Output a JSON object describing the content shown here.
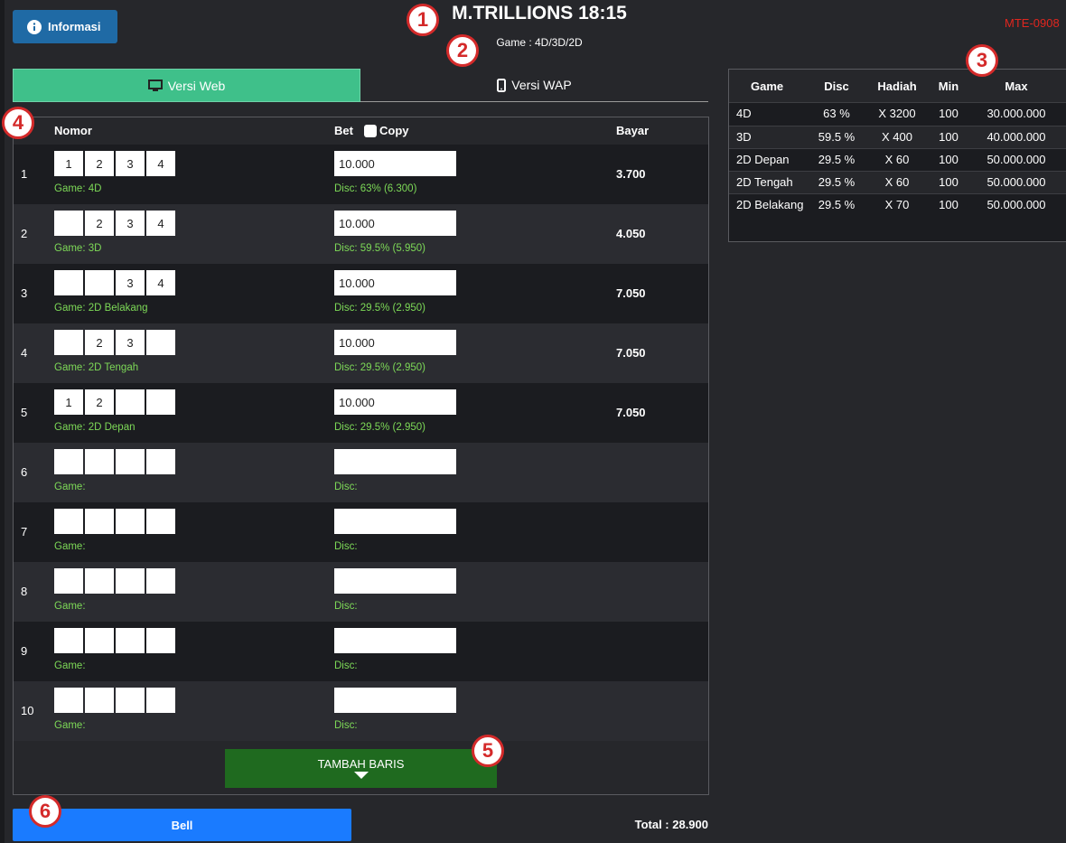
{
  "header": {
    "info_button": "Informasi",
    "title": "M.TRILLIONS 18:15",
    "subtitle": "Game : 4D/3D/2D",
    "code": "MTE-0908"
  },
  "tabs": [
    "Versi Web",
    "Versi WAP"
  ],
  "form": {
    "columns": {
      "nomor": "Nomor",
      "bet": "Bet",
      "copy": "Copy",
      "bayar": "Bayar"
    },
    "rows": [
      {
        "no": "1",
        "digits": [
          "1",
          "2",
          "3",
          "4"
        ],
        "game": "Game: 4D",
        "bet": "10.000",
        "disc": "Disc: 63% (6.300)",
        "bayar": "3.700"
      },
      {
        "no": "2",
        "digits": [
          null,
          "2",
          "3",
          "4"
        ],
        "game": "Game: 3D",
        "bet": "10.000",
        "disc": "Disc: 59.5% (5.950)",
        "bayar": "4.050"
      },
      {
        "no": "3",
        "digits": [
          null,
          null,
          "3",
          "4"
        ],
        "game": "Game: 2D Belakang",
        "bet": "10.000",
        "disc": "Disc: 29.5% (2.950)",
        "bayar": "7.050"
      },
      {
        "no": "4",
        "digits": [
          null,
          "2",
          "3",
          null
        ],
        "game": "Game: 2D Tengah",
        "bet": "10.000",
        "disc": "Disc: 29.5% (2.950)",
        "bayar": "7.050"
      },
      {
        "no": "5",
        "digits": [
          "1",
          "2",
          null,
          null
        ],
        "game": "Game: 2D Depan",
        "bet": "10.000",
        "disc": "Disc: 29.5% (2.950)",
        "bayar": "7.050"
      },
      {
        "no": "6",
        "digits": [
          null,
          null,
          null,
          null
        ],
        "game": "Game:",
        "bet": null,
        "disc": "Disc:",
        "bayar": null
      },
      {
        "no": "7",
        "digits": [
          null,
          null,
          null,
          null
        ],
        "game": "Game:",
        "bet": null,
        "disc": "Disc:",
        "bayar": null
      },
      {
        "no": "8",
        "digits": [
          null,
          null,
          null,
          null
        ],
        "game": "Game:",
        "bet": null,
        "disc": "Disc:",
        "bayar": null
      },
      {
        "no": "9",
        "digits": [
          null,
          null,
          null,
          null
        ],
        "game": "Game:",
        "bet": null,
        "disc": "Disc:",
        "bayar": null
      },
      {
        "no": "10",
        "digits": [
          null,
          null,
          null,
          null
        ],
        "game": "Game:",
        "bet": null,
        "disc": "Disc:",
        "bayar": null
      }
    ]
  },
  "add_row_button": "TAMBAH BARIS",
  "submit_button": "Bell",
  "total": "Total : 28.900",
  "rules_table": {
    "columns": [
      "Game",
      "Disc",
      "Hadiah",
      "Min",
      "Max"
    ],
    "rows": [
      [
        "4D",
        "63 %",
        "X 3200",
        "100",
        "30.000.000"
      ],
      [
        "3D",
        "59.5 %",
        "X 400",
        "100",
        "40.000.000"
      ],
      [
        "2D Depan",
        "29.5 %",
        "X 60",
        "100",
        "50.000.000"
      ],
      [
        "2D Tengah",
        "29.5 %",
        "X 60",
        "100",
        "50.000.000"
      ],
      [
        "2D Belakang",
        "29.5 %",
        "X 70",
        "100",
        "50.000.000"
      ]
    ]
  },
  "annotations": [
    "1",
    "2",
    "3",
    "4",
    "5",
    "6"
  ]
}
